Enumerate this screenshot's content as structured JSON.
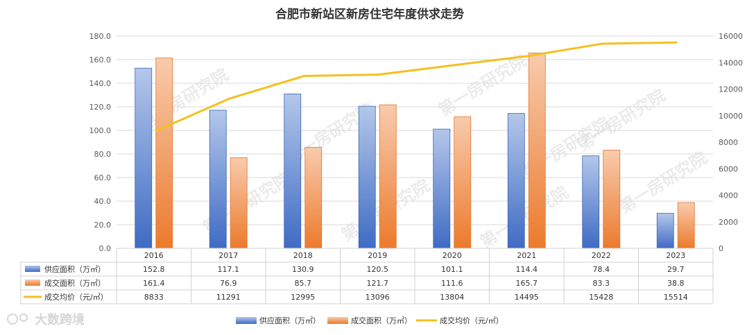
{
  "chart_data": {
    "type": "bar",
    "title": "合肥市新站区新房住宅年度供求走势",
    "categories": [
      "2016",
      "2017",
      "2018",
      "2019",
      "2020",
      "2021",
      "2022",
      "2023"
    ],
    "series": [
      {
        "name": "供应面积（万㎡）",
        "type": "bar",
        "axis": "left",
        "color": "#4472c4",
        "values": [
          152.8,
          117.1,
          130.9,
          120.5,
          101.1,
          114.4,
          78.4,
          29.7
        ]
      },
      {
        "name": "成交面积（万㎡）",
        "type": "bar",
        "axis": "left",
        "color": "#ed7d31",
        "values": [
          161.4,
          76.9,
          85.7,
          121.7,
          111.6,
          165.7,
          83.3,
          38.8
        ]
      },
      {
        "name": "成交均价（元/㎡）",
        "type": "line",
        "axis": "right",
        "color": "#f4c01e",
        "values": [
          8833,
          11291,
          12995,
          13096,
          13804,
          14495,
          15428,
          15514
        ]
      }
    ],
    "y_left": {
      "min": 0,
      "max": 180,
      "step": 20,
      "tick_labels": [
        "0.0",
        "20.0",
        "40.0",
        "60.0",
        "80.0",
        "100.0",
        "120.0",
        "140.0",
        "160.0",
        "180.0"
      ]
    },
    "y_right": {
      "min": 0,
      "max": 16000,
      "step": 2000,
      "tick_labels": [
        "0",
        "2000",
        "4000",
        "6000",
        "8000",
        "10000",
        "12000",
        "14000",
        "16000"
      ]
    },
    "grid": true,
    "legend_position": "bottom",
    "data_table": true
  },
  "watermark": {
    "text": "第一房研究院"
  },
  "logo": {
    "text": "大数跨境"
  }
}
